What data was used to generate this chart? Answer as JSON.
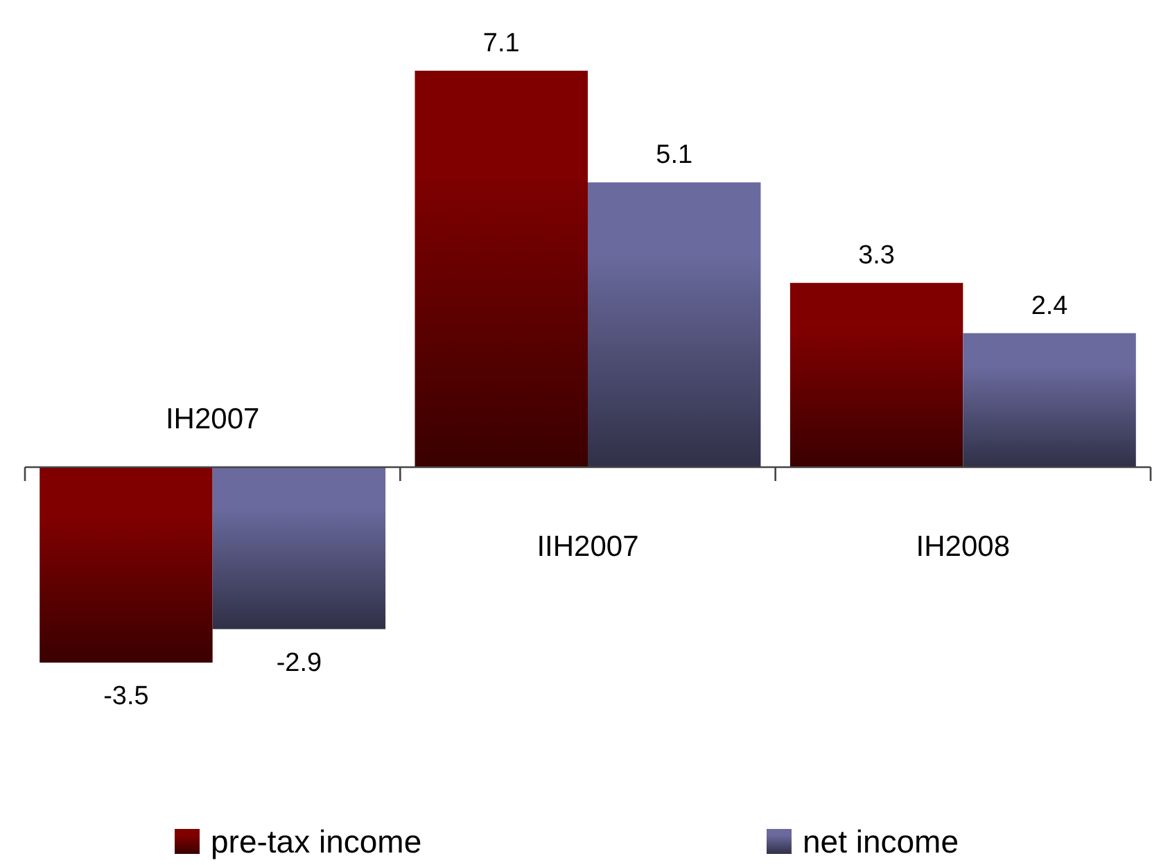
{
  "chart_data": {
    "type": "bar",
    "categories": [
      "IH2007",
      "IIH2007",
      "IH2008"
    ],
    "series": [
      {
        "name": "pre-tax income",
        "color": "#800000",
        "values": [
          -3.5,
          7.1,
          3.3
        ]
      },
      {
        "name": "net income",
        "color": "#6a6a9e",
        "values": [
          -2.9,
          5.1,
          2.4
        ]
      }
    ],
    "data_labels": true,
    "legend": "bottom"
  }
}
